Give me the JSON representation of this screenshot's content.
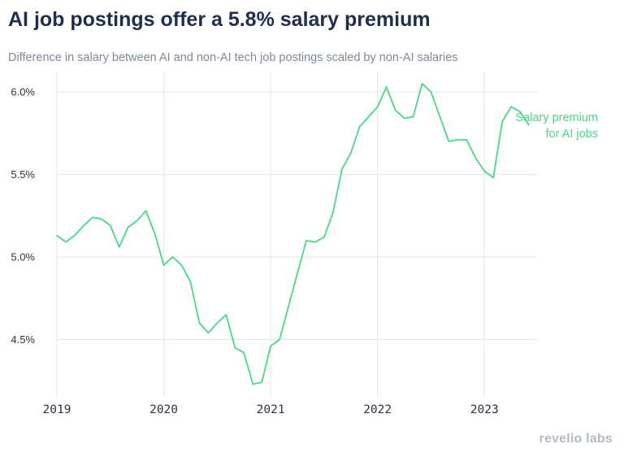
{
  "title": "AI job postings offer a 5.8% salary premium",
  "subtitle": "Difference in salary between AI and non-AI tech job postings scaled by non-AI salaries",
  "brand": "revelio labs",
  "colors": {
    "line": "#4cd685",
    "title": "#1f2d4e",
    "grid": "#e7e7e7",
    "axis_text": "#2d3340"
  },
  "chart_data": {
    "type": "line",
    "title": "AI job postings offer a 5.8% salary premium",
    "xlabel": "",
    "ylabel": "",
    "xlim": [
      "2019-01",
      "2023-07"
    ],
    "ylim": [
      4.2,
      6.12
    ],
    "y_ticks": [
      4.5,
      5.0,
      5.5,
      6.0
    ],
    "y_tick_labels": [
      "4.5%",
      "5.0%",
      "5.5%",
      "6.0%"
    ],
    "x_ticks": [
      "2019-01",
      "2020-01",
      "2021-01",
      "2022-01",
      "2023-01"
    ],
    "x_tick_labels": [
      "2019",
      "2020",
      "2021",
      "2022",
      "2023"
    ],
    "grid": true,
    "series": [
      {
        "name": "Salary premium for AI jobs",
        "label_lines": [
          "Salary premium",
          "for AI jobs"
        ],
        "x": [
          "2019-01",
          "2019-02",
          "2019-03",
          "2019-04",
          "2019-05",
          "2019-06",
          "2019-07",
          "2019-08",
          "2019-09",
          "2019-10",
          "2019-11",
          "2019-12",
          "2020-01",
          "2020-02",
          "2020-03",
          "2020-04",
          "2020-05",
          "2020-06",
          "2020-07",
          "2020-08",
          "2020-09",
          "2020-10",
          "2020-11",
          "2020-12",
          "2021-01",
          "2021-02",
          "2021-03",
          "2021-04",
          "2021-05",
          "2021-06",
          "2021-07",
          "2021-08",
          "2021-09",
          "2021-10",
          "2021-11",
          "2021-12",
          "2022-01",
          "2022-02",
          "2022-03",
          "2022-04",
          "2022-05",
          "2022-06",
          "2022-07",
          "2022-08",
          "2022-09",
          "2022-10",
          "2022-11",
          "2022-12",
          "2023-01",
          "2023-02",
          "2023-03",
          "2023-04",
          "2023-05",
          "2023-06"
        ],
        "values": [
          5.13,
          5.09,
          5.13,
          5.19,
          5.24,
          5.23,
          5.19,
          5.06,
          5.18,
          5.22,
          5.28,
          5.14,
          4.95,
          5.0,
          4.95,
          4.85,
          4.6,
          4.54,
          4.6,
          4.65,
          4.45,
          4.42,
          4.23,
          4.24,
          4.46,
          4.5,
          4.7,
          4.9,
          5.1,
          5.09,
          5.12,
          5.27,
          5.53,
          5.63,
          5.79,
          5.85,
          5.91,
          6.03,
          5.89,
          5.84,
          5.85,
          6.05,
          6.0,
          5.85,
          5.7,
          5.71,
          5.71,
          5.6,
          5.52,
          5.48,
          5.82,
          5.91,
          5.88,
          5.8
        ]
      }
    ]
  }
}
